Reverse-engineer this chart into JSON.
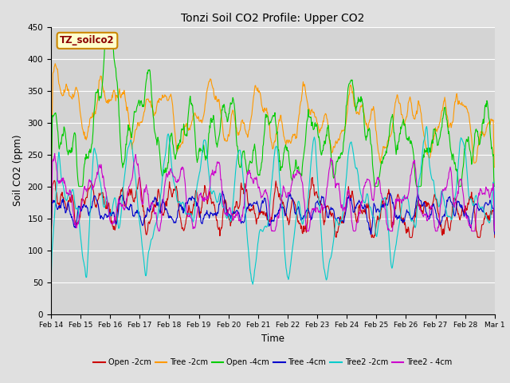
{
  "title": "Tonzi Soil CO2 Profile: Upper CO2",
  "xlabel": "Time",
  "ylabel": "Soil CO2 (ppm)",
  "ylim": [
    0,
    450
  ],
  "watermark": "TZ_soilco2",
  "fig_bg": "#e0e0e0",
  "plot_bg": "#d4d4d4",
  "series": [
    {
      "label": "Open -2cm",
      "color": "#cc0000"
    },
    {
      "label": "Tree -2cm",
      "color": "#ff9900"
    },
    {
      "label": "Open -4cm",
      "color": "#00cc00"
    },
    {
      "label": "Tree -4cm",
      "color": "#0000cc"
    },
    {
      "label": "Tree2 -2cm",
      "color": "#00cccc"
    },
    {
      "label": "Tree2 - 4cm",
      "color": "#cc00cc"
    }
  ],
  "tick_labels": [
    "Feb 14",
    "Feb 15",
    "Feb 16",
    "Feb 17",
    "Feb 18",
    "Feb 19",
    "Feb 20",
    "Feb 21",
    "Feb 22",
    "Feb 23",
    "Feb 24",
    "Feb 25",
    "Feb 26",
    "Feb 27",
    "Feb 28",
    "Mar 1"
  ],
  "yticks": [
    0,
    50,
    100,
    150,
    200,
    250,
    300,
    350,
    400,
    450
  ],
  "n_points": 960
}
